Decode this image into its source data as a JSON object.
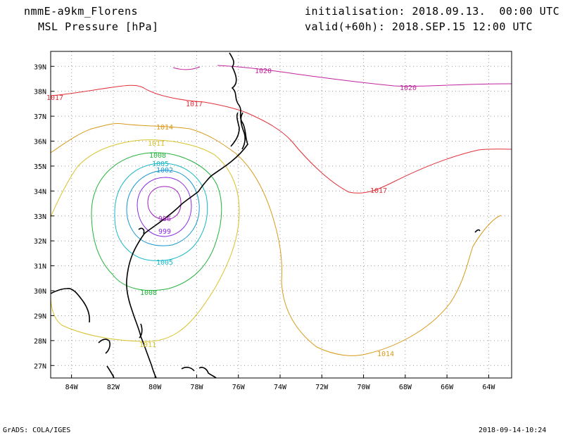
{
  "header": {
    "model": "nmmE-a9km_Florens",
    "field": "MSL Pressure [hPa]",
    "init": "initialisation: 2018.09.13.  00:00 UTC",
    "valid": "valid(+60h): 2018.SEP.15 12:00 UTC"
  },
  "footer": {
    "software": "GrADS: COLA/IGES",
    "generated": "2018-09-14-10:24"
  },
  "map": {
    "lon_range": [
      -85,
      -62.9
    ],
    "lat_range": [
      26.5,
      39.6
    ],
    "lon_ticks": [
      "84W",
      "82W",
      "80W",
      "78W",
      "76W",
      "74W",
      "72W",
      "70W",
      "68W",
      "66W",
      "64W"
    ],
    "lat_ticks": [
      "39N",
      "38N",
      "37N",
      "36N",
      "35N",
      "34N",
      "33N",
      "32N",
      "31N",
      "30N",
      "29N",
      "28N",
      "27N"
    ],
    "contour_labels": [
      "1020",
      "1020",
      "1017",
      "1017",
      "1017",
      "1014",
      "1014",
      "1011",
      "1011",
      "1008",
      "1008",
      "1005",
      "1005",
      "1002",
      "999",
      "996"
    ],
    "colors": {
      "1020": "#c0249c",
      "1017": "#e0303a",
      "1014": "#d89a1a",
      "1011": "#d8c22a",
      "1008": "#23b23a",
      "1005": "#18b8c8",
      "1002": "#1898d0",
      "999": "#8a2be2",
      "996": "#a020c0",
      "coast": "#000000",
      "grid": "#9a9a9a"
    }
  }
}
